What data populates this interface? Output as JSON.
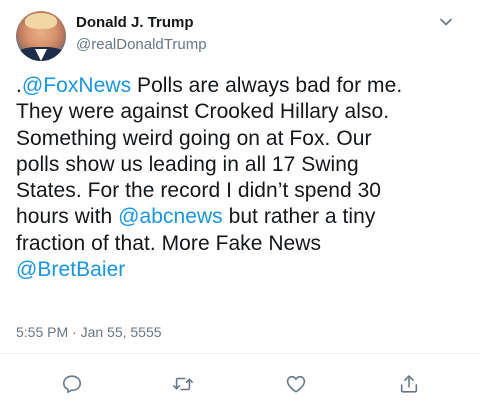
{
  "author": {
    "display_name": "Donald J. Trump",
    "handle": "@realDonaldTrump",
    "avatar": "profile-photo"
  },
  "tweet": {
    "lines": [
      [
        {
          "text": "."
        },
        {
          "text": "@FoxNews",
          "link": true
        },
        {
          "text": " Polls are always bad for me."
        }
      ],
      [
        {
          "text": "They were against Crooked Hillary also."
        }
      ],
      [
        {
          "text": "Something weird going on at Fox. Our"
        }
      ],
      [
        {
          "text": "polls show us leading in all 17 Swing"
        }
      ],
      [
        {
          "text": "States. For the record I didn’t spend 30"
        }
      ],
      [
        {
          "text": "hours with "
        },
        {
          "text": "@abcnews",
          "link": true
        },
        {
          "text": " but rather a tiny"
        }
      ],
      [
        {
          "text": "fraction of that. More Fake News"
        }
      ],
      [
        {
          "text": "@BretBaier",
          "link": true
        }
      ]
    ],
    "timestamp": "5:55 PM · Jan 55, 5555"
  },
  "actions": [
    {
      "name": "reply",
      "icon": "reply-icon"
    },
    {
      "name": "retweet",
      "icon": "retweet-icon"
    },
    {
      "name": "like",
      "icon": "heart-icon"
    },
    {
      "name": "share",
      "icon": "share-icon"
    }
  ],
  "colors": {
    "text": "#14171a",
    "secondary": "#657786",
    "link": "#1b95e0",
    "icon": "#657786",
    "divider": "#e6ecf0"
  }
}
